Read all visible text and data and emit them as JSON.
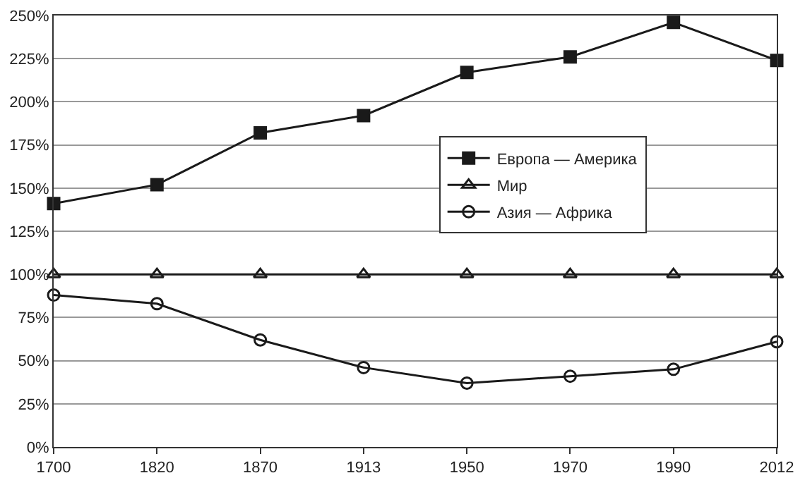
{
  "chart_data": {
    "type": "line",
    "categories": [
      "1700",
      "1820",
      "1870",
      "1913",
      "1950",
      "1970",
      "1990",
      "2012"
    ],
    "ylim": [
      0,
      250
    ],
    "yticks": [
      {
        "value": 0,
        "label": "0%"
      },
      {
        "value": 25,
        "label": "25%"
      },
      {
        "value": 50,
        "label": "50%"
      },
      {
        "value": 75,
        "label": "75%"
      },
      {
        "value": 100,
        "label": "100%"
      },
      {
        "value": 125,
        "label": "125%"
      },
      {
        "value": 150,
        "label": "150%"
      },
      {
        "value": 175,
        "label": "175%"
      },
      {
        "value": 200,
        "label": "200%"
      },
      {
        "value": 225,
        "label": "225%"
      },
      {
        "value": 250,
        "label": "250%"
      }
    ],
    "grid": "y",
    "legend": "right",
    "series": [
      {
        "name": "Европа — Америка",
        "color": "#1a1a1a",
        "marker": "square",
        "values": [
          141,
          152,
          182,
          192,
          217,
          226,
          246,
          224
        ]
      },
      {
        "name": "Мир",
        "color": "#1a1a1a",
        "marker": "triangle",
        "values": [
          100,
          100,
          100,
          100,
          100,
          100,
          100,
          100
        ]
      },
      {
        "name": "Азия — Африка",
        "color": "#1a1a1a",
        "marker": "circle",
        "values": [
          88,
          83,
          62,
          46,
          37,
          41,
          45,
          61
        ]
      }
    ]
  }
}
